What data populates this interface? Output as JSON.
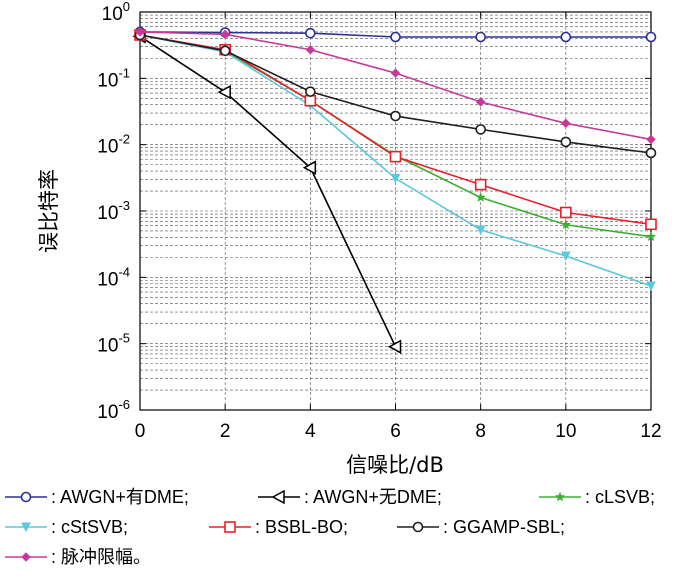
{
  "chart_data": {
    "type": "line",
    "xlabel": "信噪比/dB",
    "ylabel": "误比特率",
    "x_ticks": [
      0,
      2,
      4,
      6,
      8,
      10,
      12
    ],
    "y_ticks": [
      {
        "base": "10",
        "exp": "0"
      },
      {
        "base": "10",
        "exp": "-1"
      },
      {
        "base": "10",
        "exp": "-2"
      },
      {
        "base": "10",
        "exp": "-3"
      },
      {
        "base": "10",
        "exp": "-4"
      },
      {
        "base": "10",
        "exp": "-5"
      },
      {
        "base": "10",
        "exp": "-6"
      }
    ],
    "xlim": [
      0,
      12
    ],
    "ylim": [
      1e-06,
      1
    ],
    "yscale": "log",
    "grid": true,
    "legend_position": "bottom",
    "series": [
      {
        "name": ": AWGN+有DME;",
        "color": "#2e3192",
        "marker": "circle",
        "x": [
          0,
          2,
          4,
          6,
          8,
          10,
          12
        ],
        "y": [
          0.5,
          0.49,
          0.48,
          0.42,
          0.42,
          0.42,
          0.42
        ]
      },
      {
        "name": ": AWGN+无DME;",
        "color": "#000000",
        "marker": "triangle-left",
        "x": [
          0,
          2,
          4,
          6
        ],
        "y": [
          0.43,
          0.062,
          0.0045,
          9e-06
        ]
      },
      {
        "name": ": cLSVB;",
        "color": "#3db034",
        "marker": "star",
        "x": [
          0,
          2,
          4,
          6,
          8,
          10,
          12
        ],
        "y": [
          0.45,
          0.26,
          0.046,
          0.0068,
          0.0016,
          0.00062,
          0.00041
        ]
      },
      {
        "name": ": cStSVB;",
        "color": "#5bc8dc",
        "marker": "triangle-down",
        "x": [
          0,
          2,
          4,
          6,
          8,
          10,
          12
        ],
        "y": [
          0.45,
          0.25,
          0.039,
          0.0031,
          0.00052,
          0.00021,
          7.4e-05
        ]
      },
      {
        "name": ": BSBL-BO;",
        "color": "#e8202a",
        "marker": "square",
        "x": [
          0,
          2,
          4,
          6,
          8,
          10,
          12
        ],
        "y": [
          0.45,
          0.27,
          0.046,
          0.0066,
          0.0025,
          0.00095,
          0.00063
        ]
      },
      {
        "name": ": GGAMP-SBL;",
        "color": "#231f20",
        "marker": "circle",
        "x": [
          0,
          2,
          4,
          6,
          8,
          10,
          12
        ],
        "y": [
          0.45,
          0.26,
          0.063,
          0.027,
          0.017,
          0.011,
          0.0075
        ]
      },
      {
        "name": ": 脉冲限幅。",
        "color": "#c8389a",
        "marker": "diamond",
        "x": [
          0,
          2,
          4,
          6,
          8,
          10,
          12
        ],
        "y": [
          0.5,
          0.46,
          0.27,
          0.12,
          0.044,
          0.021,
          0.012
        ]
      }
    ]
  }
}
